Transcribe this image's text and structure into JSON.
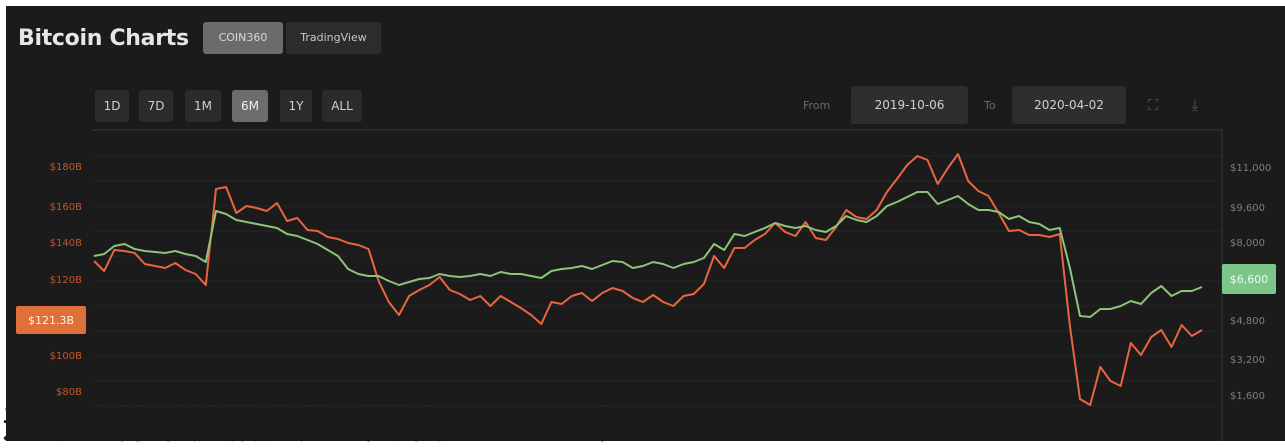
{
  "header": {
    "title": "Bitcoin Charts",
    "sources": [
      "COIN360",
      "TradingView"
    ],
    "active_source": "COIN360"
  },
  "toolbar": {
    "ranges": [
      "1D",
      "7D",
      "1M",
      "6M",
      "1Y",
      "ALL"
    ],
    "active_range": "6M",
    "from_label": "From",
    "from_date": "2019-10-06",
    "to_label": "To",
    "to_date": "2020-04-02",
    "icons": [
      "expand-icon",
      "download-icon"
    ]
  },
  "chart_data": {
    "type": "line",
    "x_range": [
      "2019-10-06",
      "2020-04-02"
    ],
    "left_axis": {
      "ticks": [
        "$180B",
        "$160B",
        "$140B",
        "$120B",
        "$100B",
        "$80B"
      ],
      "current_label": "$121.3B",
      "color": "#e0703a"
    },
    "right_axis": {
      "ticks": [
        "$11,000",
        "$9,600",
        "$8,000",
        "$6,600",
        "$4,800",
        "$3,200",
        "$1,600"
      ],
      "current_label": "$6,600",
      "color": "#7cc68a"
    },
    "series": [
      {
        "color": "#e8663f",
        "values": [
          255,
          265,
          244,
          245,
          247,
          258,
          260,
          262,
          257,
          264,
          268,
          279,
          183,
          181,
          207,
          200,
          202,
          205,
          197,
          215,
          212,
          224,
          225,
          231,
          233,
          237,
          239,
          243,
          275,
          296,
          309,
          290,
          284,
          279,
          271,
          284,
          288,
          294,
          290,
          300,
          290,
          296,
          302,
          309,
          318,
          296,
          298,
          290,
          287,
          295,
          287,
          282,
          285,
          292,
          296,
          289,
          296,
          300,
          290,
          288,
          278,
          250,
          262,
          242,
          242,
          234,
          228,
          217,
          226,
          230,
          216,
          232,
          234,
          221,
          204,
          211,
          213,
          204,
          186,
          173,
          159,
          150,
          154,
          178,
          162,
          148,
          175,
          185,
          190,
          207,
          225,
          224,
          229,
          229,
          231,
          228,
          320,
          393,
          399,
          361,
          375,
          380,
          337,
          349,
          331,
          324,
          341,
          319,
          330,
          324
        ]
      },
      {
        "color": "#8cc47a",
        "values": [
          250,
          248,
          240,
          238,
          243,
          245,
          246,
          247,
          245,
          248,
          250,
          256,
          205,
          208,
          214,
          216,
          218,
          220,
          222,
          228,
          230,
          234,
          238,
          244,
          250,
          263,
          268,
          270,
          270,
          275,
          279,
          276,
          273,
          272,
          268,
          270,
          271,
          270,
          268,
          270,
          266,
          268,
          268,
          270,
          272,
          265,
          263,
          262,
          260,
          263,
          259,
          255,
          256,
          262,
          260,
          256,
          258,
          262,
          258,
          256,
          252,
          238,
          244,
          228,
          230,
          226,
          222,
          217,
          220,
          222,
          220,
          224,
          226,
          220,
          210,
          214,
          216,
          210,
          200,
          196,
          191,
          186,
          186,
          198,
          194,
          190,
          198,
          204,
          204,
          206,
          213,
          210,
          216,
          218,
          224,
          222,
          262,
          310,
          311,
          303,
          303,
          300,
          295,
          298,
          287,
          280,
          290,
          285,
          285,
          281
        ]
      }
    ]
  },
  "caption": "近期比特币价格走势（截自Coin360）"
}
